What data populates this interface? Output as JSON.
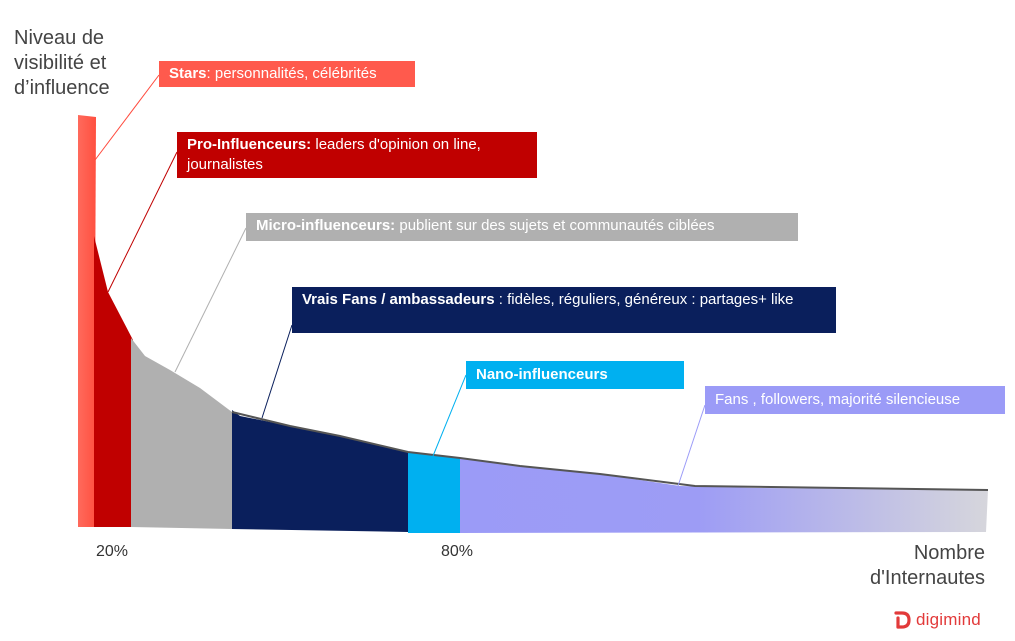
{
  "axis": {
    "y_label": "Niveau de\nvisibilité et\nd’influence",
    "x_label": "Nombre\nd'Internautes",
    "ticks": [
      "20%",
      "80%"
    ]
  },
  "segments": [
    {
      "key": "stars",
      "title": "Stars",
      "desc": ": personnalités, célébrités",
      "color": "#ff5a4d"
    },
    {
      "key": "pro",
      "title": "Pro-Influenceurs:",
      "desc": " leaders d'opinion on line, journalistes",
      "color": "#c00000"
    },
    {
      "key": "micro",
      "title": "Micro-influenceurs:",
      "desc": " publient sur des sujets et communautés ciblées",
      "color": "#b0b0b0"
    },
    {
      "key": "fans_amb",
      "title": "Vrais Fans / ambassadeurs",
      "desc": " : fidèles, réguliers, généreux : partages+ like",
      "color": "#0a1f5c"
    },
    {
      "key": "nano",
      "title": "Nano-influenceurs",
      "desc": "",
      "color": "#00b0f0"
    },
    {
      "key": "fans",
      "title": "",
      "desc": "Fans , followers, majorité silencieuse",
      "color": "#9b9bf7"
    }
  ],
  "brand": {
    "name": "digimind",
    "color": "#e23a3a"
  }
}
